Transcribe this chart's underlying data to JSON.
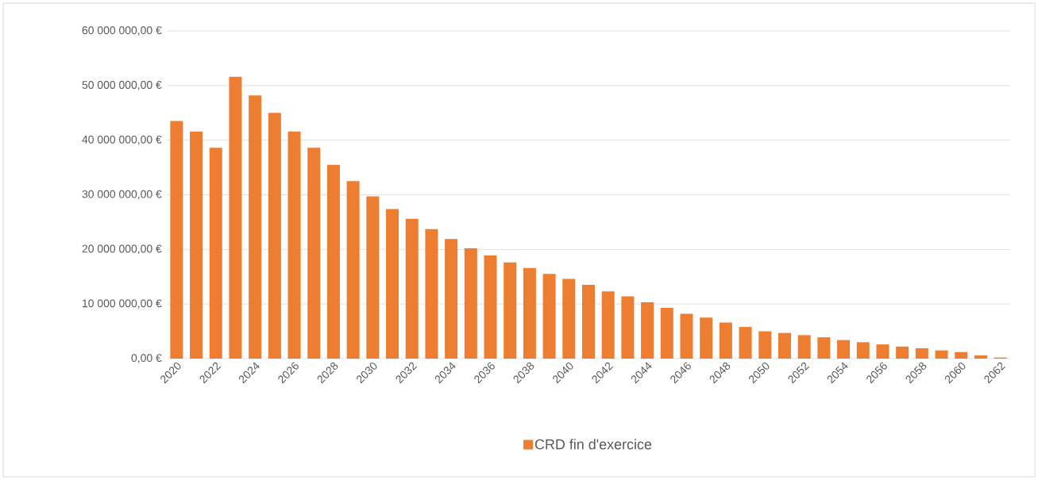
{
  "chart_data": {
    "type": "bar",
    "categories": [
      "2020",
      null,
      "2022",
      null,
      "2024",
      null,
      "2026",
      null,
      "2028",
      null,
      "2030",
      null,
      "2032",
      null,
      "2034",
      null,
      "2036",
      null,
      "2038",
      null,
      "2040",
      null,
      "2042",
      null,
      "2044",
      null,
      "2046",
      null,
      "2048",
      null,
      "2050",
      null,
      "2052",
      null,
      "2054",
      null,
      "2056",
      null,
      "2058",
      null,
      "2060",
      null,
      "2062"
    ],
    "series": [
      {
        "name": "CRD fin d'exercice",
        "color": "#ed7d31",
        "values": [
          43500000,
          41600000,
          38600000,
          51600000,
          48200000,
          45000000,
          41600000,
          38600000,
          35500000,
          32500000,
          29700000,
          27400000,
          25600000,
          23700000,
          21900000,
          20200000,
          18900000,
          17600000,
          16600000,
          15500000,
          14600000,
          13500000,
          12300000,
          11400000,
          10300000,
          9300000,
          8200000,
          7500000,
          6600000,
          5800000,
          5000000,
          4700000,
          4300000,
          3900000,
          3400000,
          3000000,
          2600000,
          2200000,
          1900000,
          1500000,
          1200000,
          600000,
          200000
        ]
      }
    ],
    "ylim": [
      0,
      60000000
    ],
    "yticks": [
      {
        "value": 0,
        "label": "0,00 €"
      },
      {
        "value": 10000000,
        "label": "10 000 000,00 €"
      },
      {
        "value": 20000000,
        "label": "20 000 000,00 €"
      },
      {
        "value": 30000000,
        "label": "30 000 000,00 €"
      },
      {
        "value": 40000000,
        "label": "40 000 000,00 €"
      },
      {
        "value": 50000000,
        "label": "50 000 000,00 €"
      },
      {
        "value": 60000000,
        "label": "60 000 000,00 €"
      }
    ],
    "grid": "y",
    "legend": "bottom"
  }
}
